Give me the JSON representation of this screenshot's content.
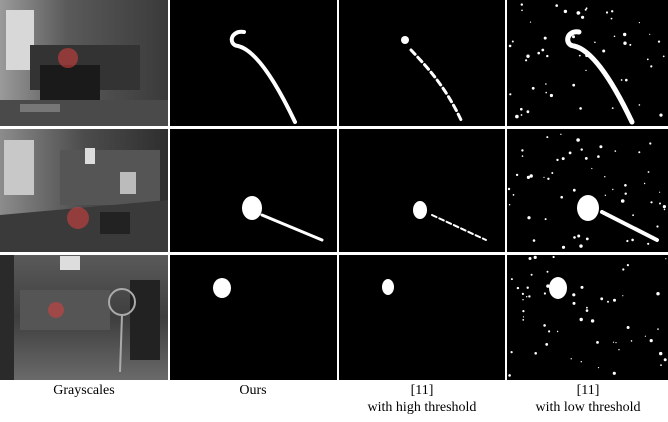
{
  "columns": [
    {
      "label": "Grayscales"
    },
    {
      "label": "Ours"
    },
    {
      "label": "[11]",
      "sublabel": "with high threshold"
    },
    {
      "label": "[11]",
      "sublabel": "with low threshold"
    }
  ]
}
